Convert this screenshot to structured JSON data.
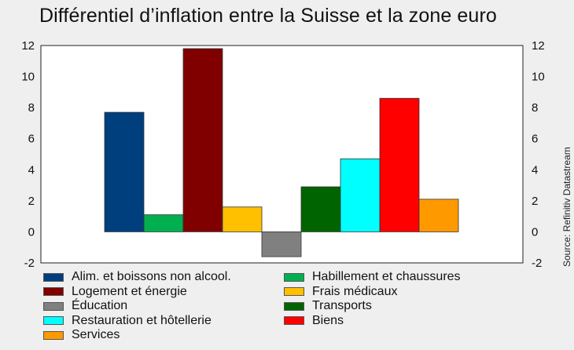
{
  "title": "Différentiel d’inflation entre la Suisse et la zone euro",
  "source": "Source: Refinitiv Datastream",
  "chart_data": {
    "type": "bar",
    "title": "Différentiel d’inflation entre la Suisse et la zone euro",
    "xlabel": "",
    "ylabel": "",
    "ylim": [
      -2,
      12
    ],
    "yticks": [
      12,
      10,
      8,
      6,
      4,
      2,
      0,
      -2
    ],
    "grid": false,
    "legend_position": "bottom",
    "categories": [
      "Alim. et boissons non alcool.",
      "Habillement et chaussures",
      "Logement et énergie",
      "Frais médicaux",
      "Éducation",
      "Transports",
      "Restauration et hôtellerie",
      "Biens",
      "Services"
    ],
    "values": [
      7.7,
      1.1,
      11.8,
      1.6,
      -1.6,
      2.9,
      4.7,
      8.6,
      2.1
    ],
    "colors": [
      "#003f7d",
      "#00b050",
      "#800000",
      "#ffc000",
      "#808080",
      "#006400",
      "#00ffff",
      "#ff0000",
      "#ff9900"
    ]
  },
  "legend": [
    {
      "label": "Alim. et boissons non alcool.",
      "color": "#003f7d"
    },
    {
      "label": "Habillement et chaussures",
      "color": "#00b050"
    },
    {
      "label": "Logement et énergie",
      "color": "#800000"
    },
    {
      "label": "Frais médicaux",
      "color": "#ffc000"
    },
    {
      "label": "Éducation",
      "color": "#808080"
    },
    {
      "label": "Transports",
      "color": "#006400"
    },
    {
      "label": "Restauration et hôtellerie",
      "color": "#00ffff"
    },
    {
      "label": "Biens",
      "color": "#ff0000"
    },
    {
      "label": "Services",
      "color": "#ff9900"
    }
  ]
}
